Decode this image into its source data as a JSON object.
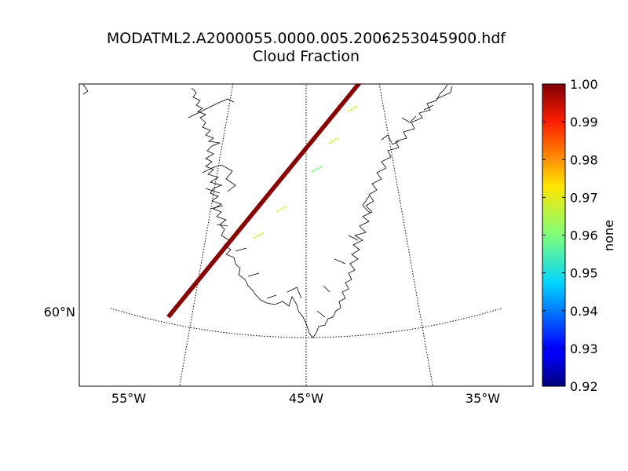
{
  "title_line1": "MODATML2.A2000055.0000.005.2006253045900.hdf",
  "title_line2": "Cloud Fraction",
  "map": {
    "lon_labels": [
      "55°W",
      "45°W",
      "35°W"
    ],
    "lat_labels": [
      "60°N"
    ],
    "lon_lines_deg": [
      -55,
      -45,
      -35
    ],
    "lat_lines_deg": [
      60
    ],
    "swath": {
      "start": {
        "lon": -57.0,
        "lat": 60.3
      },
      "end": {
        "lon": -36.3,
        "lat": 73.0
      },
      "dominant_value": 1.0,
      "lighter_segments": [
        {
          "lon": -49.8,
          "lat": 65.0,
          "value": 0.965
        },
        {
          "lon": -47.6,
          "lat": 66.4,
          "value": 0.97
        },
        {
          "lon": -43.8,
          "lat": 68.4,
          "value": 0.96
        },
        {
          "lon": -41.6,
          "lat": 69.8,
          "value": 0.97
        },
        {
          "lon": -39.0,
          "lat": 71.3,
          "value": 0.965
        }
      ]
    }
  },
  "colorbar": {
    "label": "none",
    "min": 0.92,
    "max": 1.0,
    "ticks": [
      "1.00",
      "0.99",
      "0.98",
      "0.97",
      "0.96",
      "0.95",
      "0.94",
      "0.93",
      "0.92"
    ],
    "colormap": "jet"
  },
  "colors": {
    "swath": "#8b0000",
    "axes": "#000000",
    "grid": "#000000"
  }
}
